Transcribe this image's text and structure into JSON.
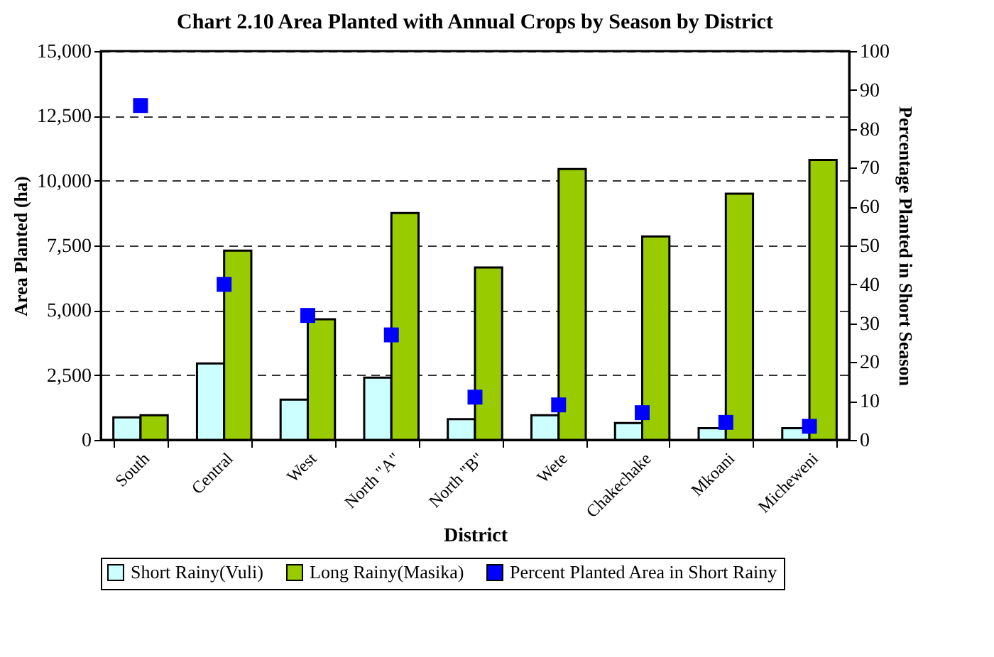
{
  "chart_data": {
    "type": "bar",
    "title": "Chart 2.10      Area Planted with Annual Crops by Season by District",
    "xlabel": "District",
    "ylabel": "Area Planted (ha)",
    "y2label": "Percentage Planted in Short Season",
    "categories": [
      "South",
      "Central",
      "West",
      "North \"A\"",
      "North \"B\"",
      "Wete",
      "Chakechake",
      "Mkoani",
      "Micheweni"
    ],
    "series": [
      {
        "name": "Short Rainy(Vuli)",
        "color": "#ccffff",
        "values": [
          870,
          2950,
          1550,
          2400,
          800,
          950,
          650,
          450,
          450
        ]
      },
      {
        "name": "Long Rainy(Masika)",
        "color": "#99cc00",
        "values": [
          950,
          7300,
          4650,
          8750,
          6650,
          10450,
          7850,
          9500,
          10800
        ]
      },
      {
        "name": "Percent Planted Area in Short Rainy",
        "color": "#0000ff",
        "type": "scatter",
        "axis": "y2",
        "values": [
          86,
          40,
          32,
          27,
          11,
          9,
          7,
          4.5,
          3.5
        ]
      }
    ],
    "ylim": [
      0,
      15000
    ],
    "yticks": [
      {
        "value": 0,
        "label": "0"
      },
      {
        "value": 2500,
        "label": "2,500"
      },
      {
        "value": 5000,
        "label": "5,000"
      },
      {
        "value": 7500,
        "label": "7,500"
      },
      {
        "value": 10000,
        "label": "10,000"
      },
      {
        "value": 12500,
        "label": "12,500"
      },
      {
        "value": 15000,
        "label": "15,000"
      }
    ],
    "y2lim": [
      0,
      100
    ],
    "y2ticks": [
      0,
      10,
      20,
      30,
      40,
      50,
      60,
      70,
      80,
      90,
      100
    ],
    "grid": "y",
    "legend": "bottom",
    "marker": "square"
  }
}
